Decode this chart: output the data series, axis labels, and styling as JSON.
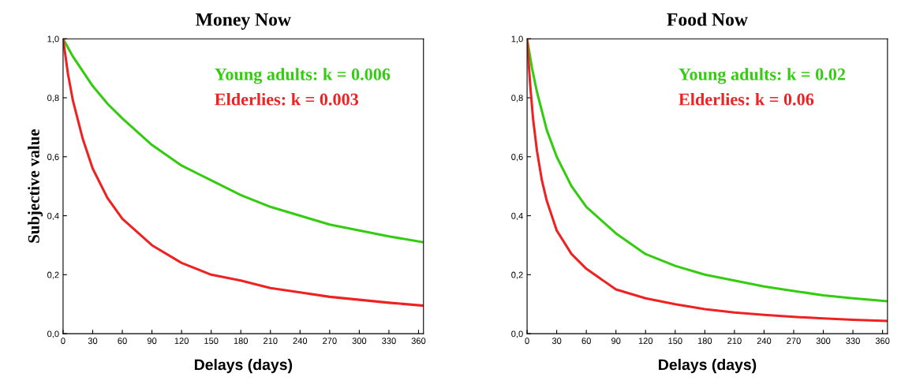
{
  "chart_data": [
    {
      "type": "line",
      "title": "Money Now",
      "xlabel": "Delays (days)",
      "ylabel": "Subjective value",
      "xlim": [
        0,
        365
      ],
      "ylim": [
        0,
        1
      ],
      "xticks": [
        0,
        30,
        60,
        90,
        120,
        150,
        180,
        210,
        240,
        270,
        300,
        330,
        360
      ],
      "yticks": [
        {
          "value": 0,
          "label": "0,0"
        },
        {
          "value": 0.2,
          "label": "0,2"
        },
        {
          "value": 0.4,
          "label": "0,4"
        },
        {
          "value": 0.6,
          "label": "0,6"
        },
        {
          "value": 0.8,
          "label": "0,8"
        },
        {
          "value": 1,
          "label": "1,0"
        }
      ],
      "annotations": [
        "Young adults: k = 0.006",
        "Elderlies: k = 0.003"
      ],
      "series": [
        {
          "color": "#33cc11",
          "x": [
            0,
            10,
            20,
            30,
            45,
            60,
            90,
            120,
            150,
            180,
            210,
            240,
            270,
            300,
            330,
            365
          ],
          "values": [
            1,
            0.94,
            0.89,
            0.84,
            0.78,
            0.73,
            0.64,
            0.57,
            0.52,
            0.47,
            0.43,
            0.4,
            0.37,
            0.35,
            0.33,
            0.31
          ]
        },
        {
          "color": "#ee2222",
          "x": [
            0,
            5,
            10,
            20,
            30,
            45,
            60,
            90,
            120,
            150,
            180,
            210,
            240,
            270,
            300,
            330,
            365
          ],
          "values": [
            1,
            0.88,
            0.79,
            0.66,
            0.56,
            0.46,
            0.39,
            0.3,
            0.24,
            0.2,
            0.18,
            0.155,
            0.14,
            0.125,
            0.115,
            0.105,
            0.095
          ]
        }
      ]
    },
    {
      "type": "line",
      "title": "Food Now",
      "xlabel": "Delays (days)",
      "xlim": [
        0,
        365
      ],
      "ylim": [
        0,
        1
      ],
      "xticks": [
        0,
        30,
        60,
        90,
        120,
        150,
        180,
        210,
        240,
        270,
        300,
        330,
        360
      ],
      "yticks": [
        {
          "value": 0,
          "label": "0,0"
        },
        {
          "value": 0.2,
          "label": "0,2"
        },
        {
          "value": 0.4,
          "label": "0,4"
        },
        {
          "value": 0.6,
          "label": "0,6"
        },
        {
          "value": 0.8,
          "label": "0,8"
        },
        {
          "value": 1,
          "label": "1,0"
        }
      ],
      "annotations": [
        "Young adults: k = 0.02",
        "Elderlies: k = 0.06"
      ],
      "series": [
        {
          "color": "#33cc11",
          "x": [
            0,
            5,
            10,
            20,
            30,
            45,
            60,
            90,
            120,
            150,
            180,
            210,
            240,
            270,
            300,
            330,
            365
          ],
          "values": [
            1,
            0.9,
            0.82,
            0.69,
            0.6,
            0.5,
            0.43,
            0.34,
            0.27,
            0.23,
            0.2,
            0.18,
            0.16,
            0.145,
            0.13,
            0.12,
            0.11
          ]
        },
        {
          "color": "#ee2222",
          "x": [
            0,
            3,
            6,
            10,
            15,
            20,
            30,
            45,
            60,
            90,
            120,
            150,
            180,
            210,
            240,
            270,
            300,
            330,
            365
          ],
          "values": [
            1,
            0.85,
            0.73,
            0.62,
            0.52,
            0.45,
            0.35,
            0.27,
            0.22,
            0.15,
            0.12,
            0.1,
            0.083,
            0.072,
            0.064,
            0.057,
            0.052,
            0.047,
            0.043
          ]
        }
      ]
    }
  ]
}
